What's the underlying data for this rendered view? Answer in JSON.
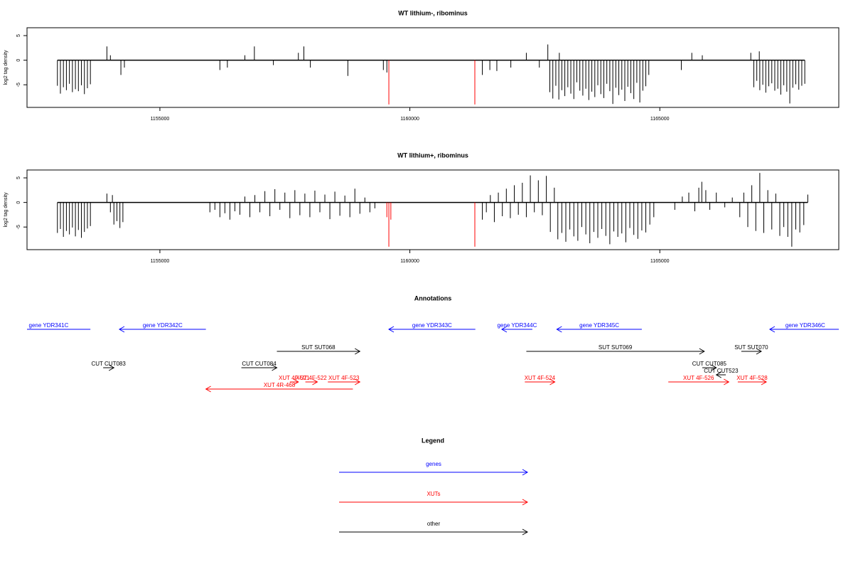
{
  "chart_data": [
    {
      "type": "bar",
      "title": "WT lithium-, ribominus",
      "ylabel": "log2 tag density",
      "xlim": [
        1152342,
        1168580
      ],
      "xticks": [
        1155000,
        1160000,
        1165000
      ],
      "ylim": [
        -9.6,
        6.6
      ],
      "yticks": [
        -5,
        0,
        5
      ],
      "series": [
        {
          "color": "#000000",
          "x": [
            1152950,
            1153010,
            1153070,
            1153130,
            1153190,
            1153250,
            1153310,
            1153370,
            1153430,
            1153490,
            1153550,
            1153610,
            1153940,
            1154010,
            1154220,
            1154290,
            1156200,
            1156350,
            1156700,
            1156890,
            1157270,
            1157770,
            1157880,
            1158010,
            1158760,
            1159470,
            1159540,
            1161450,
            1161600,
            1161740,
            1162020,
            1162330,
            1162590,
            1162760,
            1162800,
            1162860,
            1162920,
            1162980,
            1162990,
            1163040,
            1163100,
            1163160,
            1163220,
            1163280,
            1163340,
            1163400,
            1163460,
            1163520,
            1163580,
            1163640,
            1163700,
            1163760,
            1163820,
            1163880,
            1163940,
            1164000,
            1164060,
            1164120,
            1164180,
            1164240,
            1164300,
            1164360,
            1164420,
            1164480,
            1164540,
            1164600,
            1164660,
            1164720,
            1164780,
            1165430,
            1165640,
            1165850,
            1166820,
            1166990,
            1166880,
            1166940,
            1167000,
            1167060,
            1167120,
            1167180,
            1167240,
            1167300,
            1167360,
            1167420,
            1167480,
            1167540,
            1167600,
            1167660,
            1167720,
            1167780,
            1167840,
            1167900
          ],
          "values": [
            -5.2,
            -6.8,
            -5.5,
            -6.1,
            -4.8,
            -6.5,
            -5.9,
            -6.3,
            -5.1,
            -6.9,
            -5.7,
            -4.9,
            2.8,
            1.0,
            -3.0,
            -1.5,
            -2.0,
            -1.5,
            1.0,
            2.8,
            -1.0,
            1.5,
            2.8,
            -1.5,
            -3.2,
            -2.0,
            -2.5,
            -3.0,
            -2.0,
            -2.2,
            -1.5,
            1.5,
            -1.5,
            3.2,
            -6.5,
            -7.8,
            -5.2,
            -8.0,
            1.5,
            -6.1,
            -7.3,
            -5.5,
            -6.8,
            -7.9,
            -4.5,
            -6.2,
            -7.2,
            -5.8,
            -8.1,
            -6.4,
            -7.5,
            -5.1,
            -6.9,
            -7.7,
            -4.8,
            -6.3,
            -8.9,
            -5.6,
            -7.1,
            -6.0,
            -8.3,
            -5.4,
            -6.7,
            -7.9,
            -4.6,
            -8.6,
            -6.2,
            -5.3,
            -3.0,
            -2.0,
            1.5,
            1.0,
            1.5,
            1.8,
            -5.5,
            -4.2,
            -6.1,
            -5.0,
            -6.6,
            -5.3,
            -4.7,
            -6.2,
            -5.8,
            -7.0,
            -5.1,
            -6.4,
            -8.8,
            -5.6,
            -4.9,
            -6.0,
            -5.2,
            -4.8
          ]
        },
        {
          "color": "#ff0000",
          "x": [
            1159580,
            1161300
          ],
          "values": [
            -9.0,
            -9.0
          ]
        }
      ]
    },
    {
      "type": "bar",
      "title": "WT lithium+, ribominus",
      "ylabel": "log2 tag density",
      "xlim": [
        1152342,
        1168580
      ],
      "xticks": [
        1155000,
        1160000,
        1165000
      ],
      "ylim": [
        -9.6,
        6.6
      ],
      "yticks": [
        -5,
        0,
        5
      ],
      "series": [
        {
          "color": "#000000",
          "x": [
            1152950,
            1153010,
            1153070,
            1153130,
            1153190,
            1153250,
            1153310,
            1153370,
            1153430,
            1153490,
            1153550,
            1153610,
            1153940,
            1154010,
            1154050,
            1154080,
            1154140,
            1154200,
            1154260,
            1156000,
            1156100,
            1156200,
            1156300,
            1156400,
            1156500,
            1156600,
            1156700,
            1156800,
            1156900,
            1157000,
            1157100,
            1157200,
            1157300,
            1157400,
            1157500,
            1157600,
            1157700,
            1157800,
            1157900,
            1158000,
            1158100,
            1158200,
            1158300,
            1158400,
            1158500,
            1158600,
            1158700,
            1158800,
            1158900,
            1159000,
            1159100,
            1159200,
            1159300,
            1161450,
            1161530,
            1161610,
            1161690,
            1161770,
            1161850,
            1161930,
            1162010,
            1162090,
            1162170,
            1162250,
            1162330,
            1162410,
            1162490,
            1162570,
            1162650,
            1162730,
            1162810,
            1162890,
            1162960,
            1163040,
            1163120,
            1163200,
            1163280,
            1163360,
            1163440,
            1163520,
            1163600,
            1163680,
            1163760,
            1163840,
            1163920,
            1164000,
            1164080,
            1164160,
            1164240,
            1164320,
            1164400,
            1164480,
            1164560,
            1164640,
            1164720,
            1164800,
            1164880,
            1165300,
            1165450,
            1165580,
            1165700,
            1165780,
            1165840,
            1165920,
            1166000,
            1166130,
            1166300,
            1166450,
            1166600,
            1166680,
            1166760,
            1166840,
            1166920,
            1167000,
            1167080,
            1167160,
            1167240,
            1167320,
            1167400,
            1167480,
            1167560,
            1167640,
            1167720,
            1167800,
            1167880,
            1167960
          ],
          "values": [
            -6.2,
            -5.4,
            -7.0,
            -5.8,
            -6.5,
            -5.1,
            -6.9,
            -5.6,
            -7.2,
            -6.0,
            -5.3,
            -4.8,
            1.8,
            -2.0,
            1.5,
            -4.5,
            -3.8,
            -5.2,
            -4.0,
            -2.0,
            -1.5,
            -3.0,
            -2.2,
            -3.5,
            -1.8,
            -2.5,
            1.2,
            -3.0,
            1.5,
            -2.0,
            2.3,
            -2.8,
            2.7,
            -1.5,
            2.0,
            -3.2,
            2.5,
            -2.6,
            1.8,
            -3.0,
            2.4,
            -2.0,
            1.6,
            -3.4,
            2.2,
            -2.7,
            1.4,
            -3.0,
            2.8,
            -2.3,
            1.0,
            -2.0,
            -1.2,
            -3.5,
            -2.0,
            1.5,
            -4.0,
            2.0,
            -2.8,
            2.8,
            -3.2,
            3.5,
            -2.5,
            4.0,
            -3.0,
            5.5,
            -2.0,
            4.5,
            -2.6,
            5.4,
            -6.0,
            3.0,
            -7.5,
            -6.2,
            -8.0,
            -5.5,
            -6.9,
            -7.8,
            -5.0,
            -6.5,
            -8.3,
            -6.0,
            -7.2,
            -5.4,
            -6.8,
            -8.5,
            -5.9,
            -7.0,
            -6.3,
            -8.1,
            -5.2,
            -6.6,
            -7.4,
            -5.7,
            -6.1,
            -4.5,
            -3.0,
            -1.5,
            1.2,
            2.0,
            -1.8,
            3.0,
            4.2,
            2.5,
            -1.5,
            2.0,
            -1.0,
            1.0,
            -3.0,
            2.0,
            -5.0,
            3.5,
            -5.8,
            6.0,
            -6.2,
            2.5,
            -5.5,
            1.8,
            -6.8,
            -5.0,
            -7.0,
            -9.0,
            -5.5,
            -6.1,
            -4.6,
            1.6
          ]
        },
        {
          "color": "#ff0000",
          "x": [
            1159540,
            1159580,
            1159620,
            1161300
          ],
          "values": [
            -3.0,
            -9.0,
            -3.5,
            -9.0
          ]
        }
      ]
    },
    {
      "type": "annotation",
      "title": "Annotations",
      "xlim": [
        1152342,
        1168580
      ],
      "features": [
        {
          "label": "gene YDR341C",
          "start": 1151940,
          "end": 1153610,
          "strand": "-",
          "color": "#0000ff"
        },
        {
          "label": "gene YDR342C",
          "start": 1154190,
          "end": 1155920,
          "strand": "-",
          "color": "#0000ff"
        },
        {
          "label": "gene YDR343C",
          "start": 1159580,
          "end": 1161310,
          "strand": "-",
          "color": "#0000ff"
        },
        {
          "label": "gene YDR344C",
          "start": 1161840,
          "end": 1162450,
          "strand": "-",
          "color": "#0000ff"
        },
        {
          "label": "gene YDR345C",
          "start": 1162940,
          "end": 1164640,
          "strand": "-",
          "color": "#0000ff"
        },
        {
          "label": "gene YDR346C",
          "start": 1167200,
          "end": 1168620,
          "strand": "-",
          "color": "#0000ff"
        },
        {
          "label": "SUT SUT068",
          "start": 1157340,
          "end": 1159000,
          "strand": "+",
          "color": "#000000"
        },
        {
          "label": "SUT SUT069",
          "start": 1162330,
          "end": 1165890,
          "strand": "+",
          "color": "#000000"
        },
        {
          "label": "SUT SUT070",
          "start": 1166630,
          "end": 1167030,
          "strand": "+",
          "color": "#000000"
        },
        {
          "label": "CUT CUT083",
          "start": 1153865,
          "end": 1154080,
          "strand": "+",
          "color": "#000000"
        },
        {
          "label": "CUT CUT084",
          "start": 1156630,
          "end": 1157340,
          "strand": "+",
          "color": "#000000"
        },
        {
          "label": "CUT CUT085",
          "start": 1165850,
          "end": 1166130,
          "strand": "+",
          "color": "#000000"
        },
        {
          "label": "CUT CUT523",
          "start": 1166130,
          "end": 1166320,
          "strand": "-",
          "color": "#000000"
        },
        {
          "label": "XUT 4F-521",
          "start": 1157600,
          "end": 1157770,
          "strand": "+",
          "color": "#ff0000"
        },
        {
          "label": "XUT 4F-522",
          "start": 1157910,
          "end": 1158150,
          "strand": "+",
          "color": "#ff0000"
        },
        {
          "label": "XUT 4F-523",
          "start": 1158360,
          "end": 1159000,
          "strand": "+",
          "color": "#ff0000"
        },
        {
          "label": "XUT 4R-468",
          "start": 1155920,
          "end": 1158860,
          "strand": "-",
          "color": "#ff0000"
        },
        {
          "label": "XUT 4F-524",
          "start": 1162300,
          "end": 1162900,
          "strand": "+",
          "color": "#ff0000"
        },
        {
          "label": "XUT 4F-526",
          "start": 1165170,
          "end": 1166380,
          "strand": "+",
          "color": "#ff0000"
        },
        {
          "label": "XUT 4F-528",
          "start": 1166560,
          "end": 1167130,
          "strand": "+",
          "color": "#ff0000"
        }
      ]
    },
    {
      "type": "legend",
      "title": "Legend",
      "items": [
        {
          "name": "genes",
          "color": "#0000ff"
        },
        {
          "name": "XUTs",
          "color": "#ff0000"
        },
        {
          "name": "other",
          "color": "#000000"
        }
      ]
    }
  ]
}
